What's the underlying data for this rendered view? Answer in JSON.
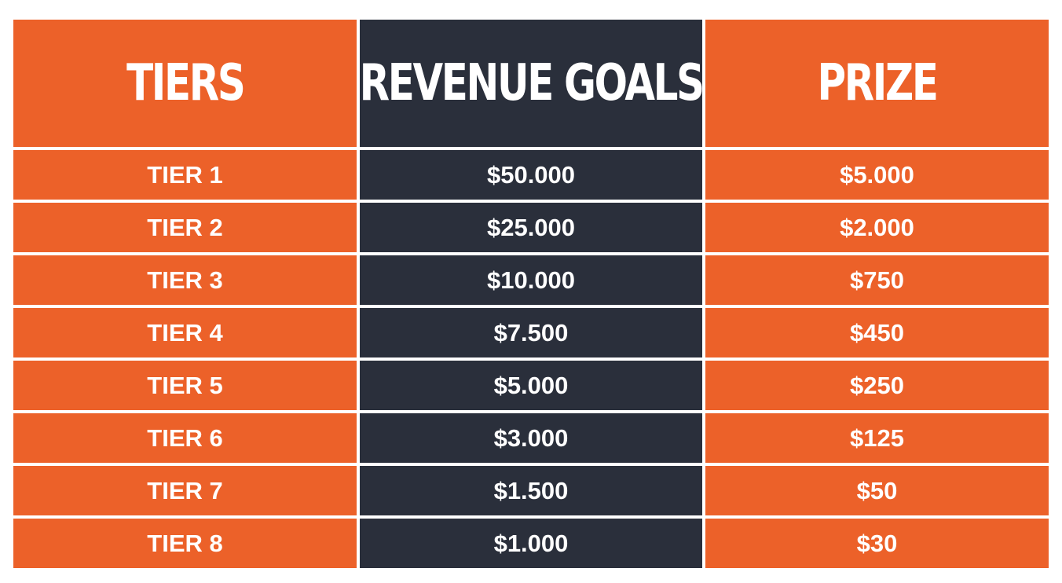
{
  "table": {
    "headers": {
      "tiers": "TIERS",
      "revenue_goals": "REVENUE GOALS",
      "prize": "PRIZE"
    },
    "rows": [
      {
        "tier": "TIER 1",
        "revenue": "$50.000",
        "prize": "$5.000"
      },
      {
        "tier": "TIER 2",
        "revenue": "$25.000",
        "prize": "$2.000"
      },
      {
        "tier": "TIER 3",
        "revenue": "$10.000",
        "prize": "$750"
      },
      {
        "tier": "TIER 4",
        "revenue": "$7.500",
        "prize": "$450"
      },
      {
        "tier": "TIER 5",
        "revenue": "$5.000",
        "prize": "$250"
      },
      {
        "tier": "TIER 6",
        "revenue": "$3.000",
        "prize": "$125"
      },
      {
        "tier": "TIER 7",
        "revenue": "$1.500",
        "prize": "$50"
      },
      {
        "tier": "TIER 8",
        "revenue": "$1.000",
        "prize": "$30"
      }
    ],
    "colors": {
      "orange": "#ec6129",
      "navy": "#2a2f3b",
      "text": "#ffffff"
    }
  }
}
